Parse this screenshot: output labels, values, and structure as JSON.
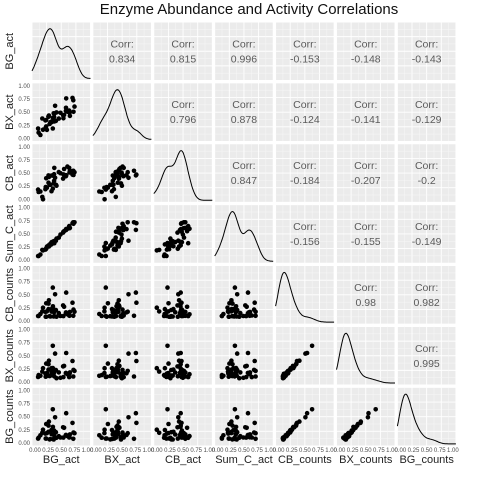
{
  "chart_data": {
    "type": "scatter",
    "title": "Enzyme Abundance and Activity Correlations",
    "variables": [
      "BG_act",
      "BX_act",
      "CB_act",
      "Sum_C_act",
      "CB_counts",
      "BX_counts",
      "BG_counts"
    ],
    "upper_label": "Corr:",
    "correlations": [
      {
        "row": "BG_act",
        "col": "BX_act",
        "value": "0.834"
      },
      {
        "row": "BG_act",
        "col": "CB_act",
        "value": "0.815"
      },
      {
        "row": "BG_act",
        "col": "Sum_C_act",
        "value": "0.996"
      },
      {
        "row": "BG_act",
        "col": "CB_counts",
        "value": "-0.153"
      },
      {
        "row": "BG_act",
        "col": "BX_counts",
        "value": "-0.148"
      },
      {
        "row": "BG_act",
        "col": "BG_counts",
        "value": "-0.143"
      },
      {
        "row": "BX_act",
        "col": "CB_act",
        "value": "0.796"
      },
      {
        "row": "BX_act",
        "col": "Sum_C_act",
        "value": "0.878"
      },
      {
        "row": "BX_act",
        "col": "CB_counts",
        "value": "-0.124"
      },
      {
        "row": "BX_act",
        "col": "BX_counts",
        "value": "-0.141"
      },
      {
        "row": "BX_act",
        "col": "BG_counts",
        "value": "-0.129"
      },
      {
        "row": "CB_act",
        "col": "Sum_C_act",
        "value": "0.847"
      },
      {
        "row": "CB_act",
        "col": "CB_counts",
        "value": "-0.184"
      },
      {
        "row": "CB_act",
        "col": "BX_counts",
        "value": "-0.207"
      },
      {
        "row": "CB_act",
        "col": "BG_counts",
        "value": "-0.2"
      },
      {
        "row": "Sum_C_act",
        "col": "CB_counts",
        "value": "-0.156"
      },
      {
        "row": "Sum_C_act",
        "col": "BX_counts",
        "value": "-0.155"
      },
      {
        "row": "Sum_C_act",
        "col": "BG_counts",
        "value": "-0.149"
      },
      {
        "row": "CB_counts",
        "col": "BX_counts",
        "value": "0.98"
      },
      {
        "row": "CB_counts",
        "col": "BG_counts",
        "value": "0.982"
      },
      {
        "row": "BX_counts",
        "col": "BG_counts",
        "value": "0.995"
      }
    ],
    "y_ticks": [
      "0.00",
      "0.25",
      "0.50",
      "0.75",
      "1.00"
    ],
    "ylim": [
      0,
      1
    ],
    "grid": true
  }
}
